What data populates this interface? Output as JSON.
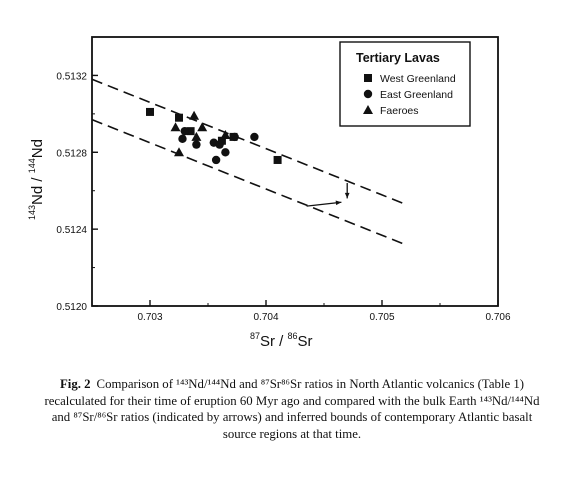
{
  "chart_data": {
    "type": "scatter",
    "xlabel_parts": {
      "sup1": "87",
      "base1": "Sr / ",
      "sup2": "86",
      "base2": "Sr"
    },
    "ylabel_parts": {
      "sup1": "143",
      "base1": "Nd / ",
      "sup2": "144",
      "base2": "Nd"
    },
    "xlim": [
      0.7025,
      0.706
    ],
    "ylim": [
      0.512,
      0.5134
    ],
    "x_ticks": [
      "0.703",
      "0.704",
      "0.705",
      "0.706"
    ],
    "y_ticks": [
      "0.5120",
      "0.5124",
      "0.5128",
      "0.5132"
    ],
    "grid": false,
    "legend": {
      "title": "Tertiary Lavas",
      "position": "top-right",
      "entries": [
        {
          "label": "West Greenland",
          "marker": "square"
        },
        {
          "label": "East Greenland",
          "marker": "circle"
        },
        {
          "label": "Faeroes",
          "marker": "triangle"
        }
      ]
    },
    "series": [
      {
        "name": "West Greenland",
        "marker": "square",
        "points": [
          [
            0.703,
            0.51301
          ],
          [
            0.70325,
            0.51298
          ],
          [
            0.70335,
            0.51291
          ],
          [
            0.70362,
            0.51286
          ],
          [
            0.70372,
            0.51288
          ],
          [
            0.7041,
            0.51276
          ]
        ]
      },
      {
        "name": "East Greenland",
        "marker": "circle",
        "points": [
          [
            0.7033,
            0.51291
          ],
          [
            0.70328,
            0.51287
          ],
          [
            0.7034,
            0.51284
          ],
          [
            0.70355,
            0.51285
          ],
          [
            0.7036,
            0.51284
          ],
          [
            0.70365,
            0.5128
          ],
          [
            0.70357,
            0.51276
          ],
          [
            0.70373,
            0.51288
          ],
          [
            0.7039,
            0.51288
          ]
        ]
      },
      {
        "name": "Faeroes",
        "marker": "triangle",
        "points": [
          [
            0.70338,
            0.51299
          ],
          [
            0.70322,
            0.51293
          ],
          [
            0.70345,
            0.51293
          ],
          [
            0.70325,
            0.5128
          ],
          [
            0.7034,
            0.51288
          ],
          [
            0.70365,
            0.51289
          ]
        ]
      }
    ],
    "bounds": [
      {
        "style": "dashed",
        "from": [
          0.7025,
          0.51318
        ],
        "to": [
          0.7052,
          0.51253
        ]
      },
      {
        "style": "dashed",
        "from": [
          0.7025,
          0.51297
        ],
        "to": [
          0.7052,
          0.51232
        ]
      }
    ],
    "arrows": [
      {
        "label_ref": "bulk Earth 87Sr/86Sr",
        "from": [
          0.7047,
          0.51264
        ],
        "to": [
          0.7047,
          0.51256
        ]
      },
      {
        "label_ref": "bulk Earth 143Nd/144Nd",
        "from": [
          0.70435,
          0.51252
        ],
        "to": [
          0.70465,
          0.51254
        ]
      }
    ]
  },
  "caption": {
    "fig_no": "Fig. 2",
    "text": "Comparison of ¹⁴³Nd/¹⁴⁴Nd and ⁸⁷Sr⁸⁶Sr ratios in North Atlantic volcanics (Table 1) recalculated for their time of eruption 60 Myr ago and compared with the bulk Earth ¹⁴³Nd/¹⁴⁴Nd and ⁸⁷Sr/⁸⁶Sr ratios (indicated by arrows) and inferred bounds of contemporary Atlantic basalt source regions at that time."
  }
}
